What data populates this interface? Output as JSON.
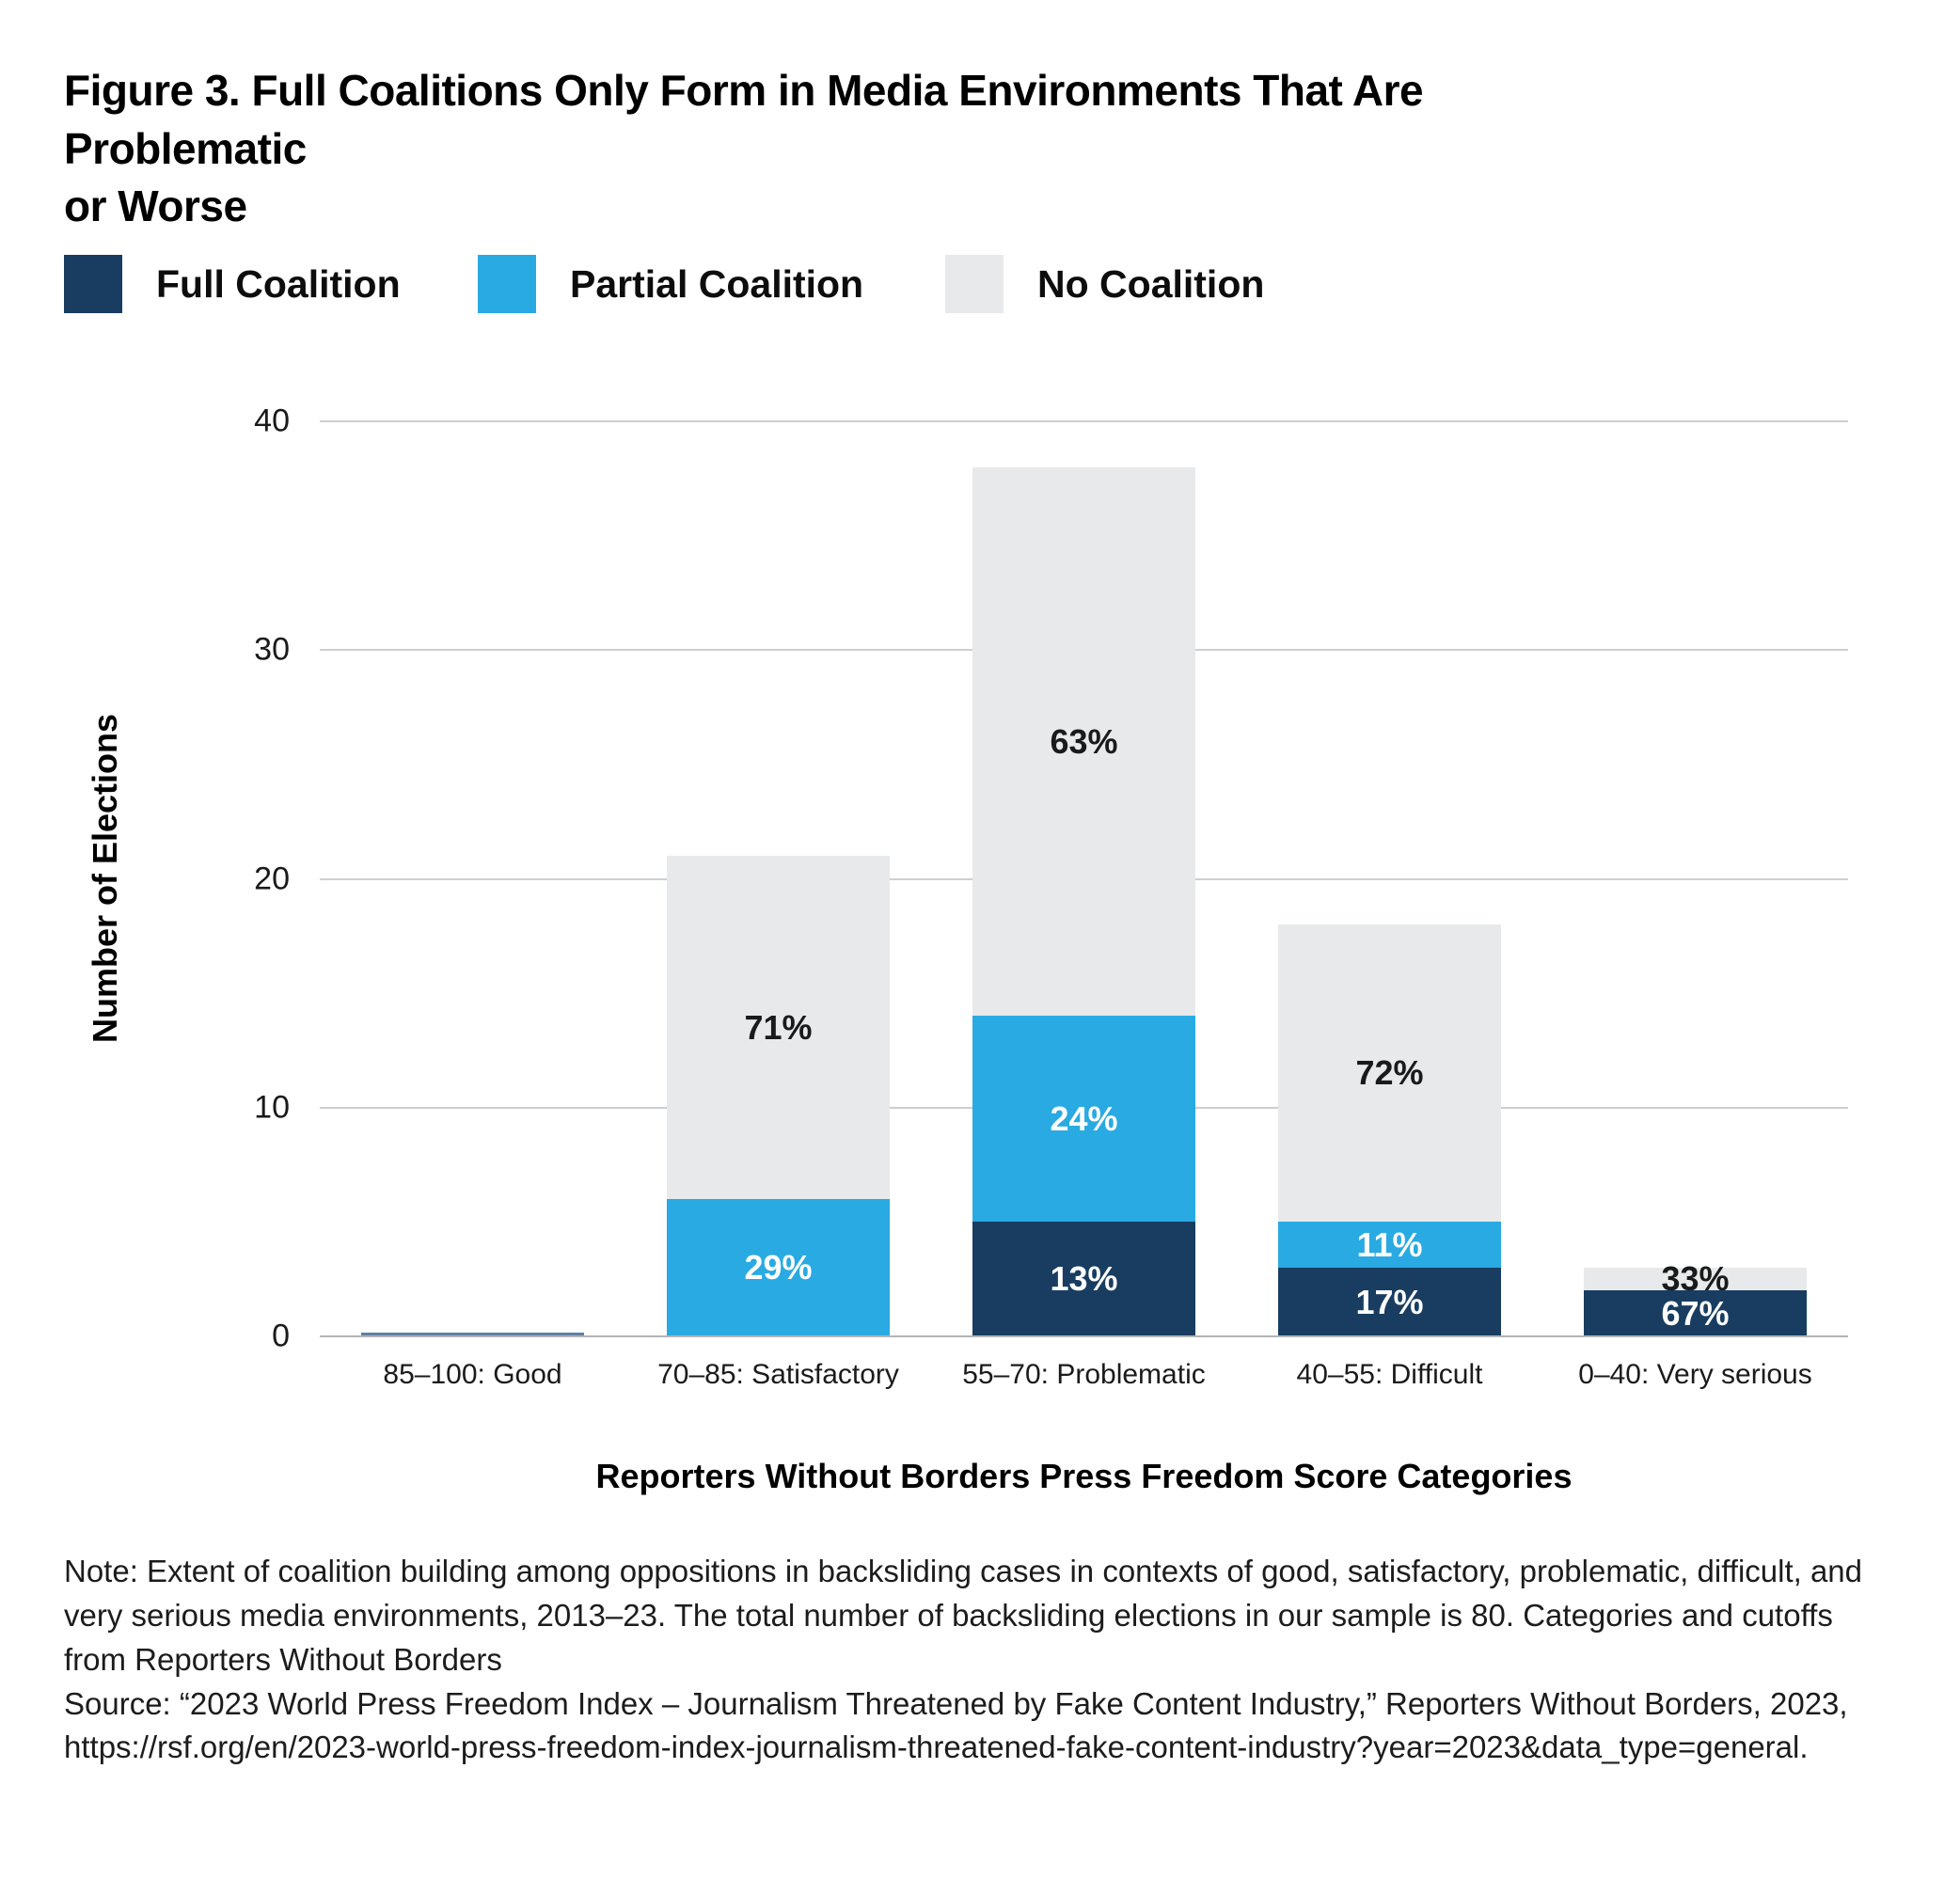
{
  "figure": {
    "title": "Figure 3. Full Coalitions Only Form in Media Environments That Are Problematic\nor Worse"
  },
  "legend": {
    "items": [
      {
        "label": "Full Coalition",
        "color": "#183D60"
      },
      {
        "label": "Partial Coalition",
        "color": "#29AAE2"
      },
      {
        "label": "No Coalition",
        "color": "#E8E9EA"
      }
    ]
  },
  "chart_data": {
    "type": "bar",
    "subtype": "stacked",
    "categories": [
      "85–100: Good",
      "70–85: Satisfactory",
      "55–70: Problematic",
      "40–55: Difficult",
      "0–40: Very serious"
    ],
    "series": [
      {
        "name": "Full Coalition",
        "color": "#183D60",
        "values": [
          0,
          0,
          5,
          3,
          2
        ],
        "pct_labels": [
          "",
          "",
          "13%",
          "17%",
          "67%"
        ],
        "label_color": "#FFFFFF"
      },
      {
        "name": "Partial Coalition",
        "color": "#29AAE2",
        "values": [
          0,
          6,
          9,
          2,
          0
        ],
        "pct_labels": [
          "",
          "29%",
          "24%",
          "11%",
          ""
        ],
        "label_color": "#FFFFFF"
      },
      {
        "name": "No Coalition",
        "color": "#E8E9EA",
        "values": [
          0,
          15,
          24,
          13,
          1
        ],
        "pct_labels": [
          "",
          "71%",
          "63%",
          "72%",
          "33%"
        ],
        "label_color": "#1A1A1A"
      }
    ],
    "totals_elections": [
      0,
      21,
      38,
      18,
      3
    ],
    "title": "",
    "xlabel": "Reporters Without Borders Press Freedom Score Categories",
    "ylabel": "Number of Elections",
    "ylim": [
      0,
      40
    ],
    "yticks": [
      0,
      10,
      20,
      30,
      40
    ],
    "grid": true,
    "legend_position": "top"
  },
  "notes": {
    "note": "Note:  Extent of coalition building among oppositions in backsliding cases in contexts of good, satisfactory, problematic, difficult, and very serious media environments, 2013–23. The total number of backsliding elections in our sample is 80. Categories and cutoffs from Reporters Without Borders",
    "source": "Source: “2023 World Press Freedom Index – Journalism Threatened by Fake Content Industry,” Reporters Without Borders, 2023, https://rsf.org/en/2023-world-press-freedom-index-journalism-threatened-fake-content-industry?year=2023&data_type=general."
  }
}
